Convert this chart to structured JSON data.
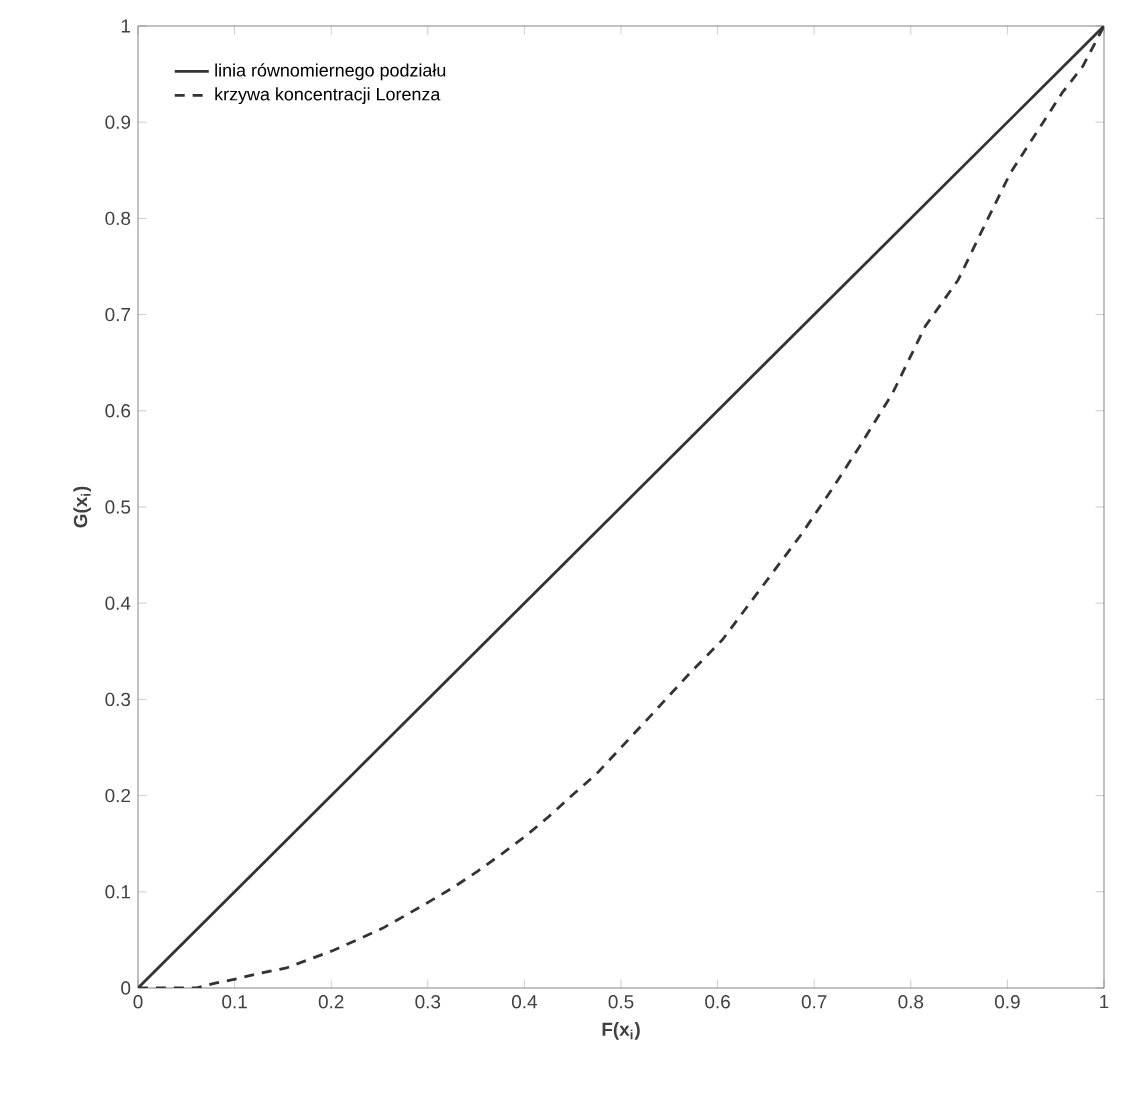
{
  "chart_data": {
    "type": "line",
    "xlabel": "F(x$_{i}$)",
    "ylabel": "G(x$_{i}$)",
    "xlim": [
      0,
      1
    ],
    "ylim": [
      0,
      1
    ],
    "xticks": [
      0,
      0.1,
      0.2,
      0.3,
      0.4,
      0.5,
      0.6,
      0.7,
      0.8,
      0.9,
      1
    ],
    "yticks": [
      0,
      0.1,
      0.2,
      0.3,
      0.4,
      0.5,
      0.6,
      0.7,
      0.8,
      0.9,
      1
    ],
    "grid": false,
    "legend": "top left",
    "marker": "none",
    "series": [
      {
        "name": "linia równomiernego podziału",
        "color": "#333333",
        "line_style": "solid",
        "x": [
          0,
          1
        ],
        "values": [
          0,
          1
        ]
      },
      {
        "name": "krzywa koncentracji Lorenza",
        "color": "#333333",
        "line_style": "dashed",
        "x": [
          0,
          0.06,
          0.08,
          0.104,
          0.125,
          0.154,
          0.178,
          0.202,
          0.229,
          0.253,
          0.276,
          0.302,
          0.327,
          0.351,
          0.376,
          0.4,
          0.425,
          0.448,
          0.475,
          0.527,
          0.571,
          0.605,
          0.646,
          0.687,
          0.72,
          0.747,
          0.781,
          0.815,
          0.849,
          0.876,
          0.903,
          0.93,
          0.957,
          0.978,
          1
        ],
        "values": [
          0,
          0,
          0.005,
          0.01,
          0.015,
          0.021,
          0.03,
          0.039,
          0.051,
          0.062,
          0.075,
          0.09,
          0.105,
          0.121,
          0.139,
          0.157,
          0.178,
          0.199,
          0.223,
          0.279,
          0.327,
          0.362,
          0.417,
          0.472,
          0.521,
          0.563,
          0.618,
          0.688,
          0.736,
          0.792,
          0.847,
          0.889,
          0.931,
          0.958,
          1
        ]
      }
    ]
  }
}
